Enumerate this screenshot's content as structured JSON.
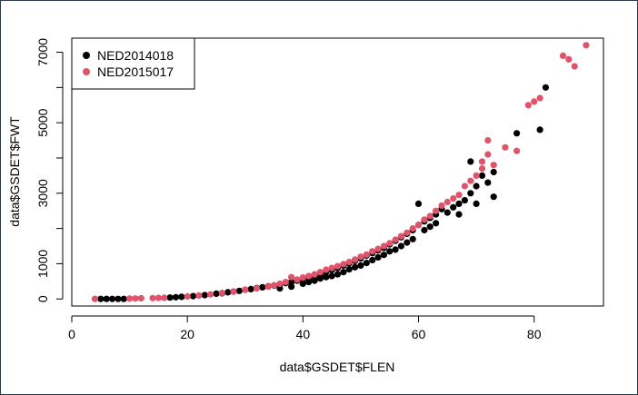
{
  "chart_data": {
    "type": "scatter",
    "xlabel": "data$GSDET$FLEN",
    "ylabel": "data$GSDET$FWT",
    "xlim": [
      0,
      92
    ],
    "ylim": [
      -200,
      7400
    ],
    "x_ticks": [
      0,
      20,
      40,
      60,
      80
    ],
    "x_tick_labels": [
      "0",
      "20",
      "40",
      "60",
      "80"
    ],
    "y_ticks": [
      0,
      1000,
      3000,
      5000,
      7000
    ],
    "y_tick_labels": [
      "0",
      "1000",
      "3000",
      "5000",
      "7000"
    ],
    "y_minor_ticks": [
      2000,
      4000,
      6000
    ],
    "grid": false,
    "legend": "top-left",
    "series": [
      {
        "name": "NED2014018",
        "color": "#000000",
        "points": [
          [
            5,
            0
          ],
          [
            6,
            0
          ],
          [
            7,
            0
          ],
          [
            8,
            0
          ],
          [
            9,
            0
          ],
          [
            17,
            40
          ],
          [
            18,
            50
          ],
          [
            19,
            60
          ],
          [
            21,
            80
          ],
          [
            23,
            110
          ],
          [
            25,
            150
          ],
          [
            26,
            160
          ],
          [
            27,
            190
          ],
          [
            28,
            210
          ],
          [
            29,
            230
          ],
          [
            30,
            260
          ],
          [
            31,
            280
          ],
          [
            32,
            310
          ],
          [
            33,
            330
          ],
          [
            34,
            360
          ],
          [
            35,
            380
          ],
          [
            36,
            410
          ],
          [
            36,
            300
          ],
          [
            37,
            450
          ],
          [
            38,
            480
          ],
          [
            38,
            350
          ],
          [
            39,
            520
          ],
          [
            40,
            560
          ],
          [
            40,
            430
          ],
          [
            41,
            600
          ],
          [
            41,
            480
          ],
          [
            42,
            650
          ],
          [
            42,
            520
          ],
          [
            43,
            700
          ],
          [
            43,
            580
          ],
          [
            44,
            760
          ],
          [
            44,
            620
          ],
          [
            45,
            820
          ],
          [
            45,
            650
          ],
          [
            46,
            880
          ],
          [
            46,
            700
          ],
          [
            47,
            950
          ],
          [
            47,
            760
          ],
          [
            48,
            1010
          ],
          [
            48,
            840
          ],
          [
            49,
            1080
          ],
          [
            49,
            900
          ],
          [
            50,
            1150
          ],
          [
            50,
            950
          ],
          [
            51,
            1230
          ],
          [
            51,
            1020
          ],
          [
            52,
            1300
          ],
          [
            52,
            1100
          ],
          [
            53,
            1380
          ],
          [
            53,
            1180
          ],
          [
            54,
            1450
          ],
          [
            54,
            1250
          ],
          [
            55,
            1550
          ],
          [
            55,
            1350
          ],
          [
            56,
            1650
          ],
          [
            56,
            1400
          ],
          [
            57,
            1750
          ],
          [
            57,
            1500
          ],
          [
            58,
            1850
          ],
          [
            58,
            1600
          ],
          [
            59,
            1950
          ],
          [
            59,
            1700
          ],
          [
            60,
            2700
          ],
          [
            60,
            2100
          ],
          [
            61,
            2200
          ],
          [
            61,
            1950
          ],
          [
            62,
            2300
          ],
          [
            62,
            2050
          ],
          [
            63,
            2400
          ],
          [
            63,
            2150
          ],
          [
            64,
            2550
          ],
          [
            65,
            2450
          ],
          [
            66,
            2600
          ],
          [
            67,
            2700
          ],
          [
            67,
            2400
          ],
          [
            68,
            2800
          ],
          [
            69,
            3900
          ],
          [
            69,
            3000
          ],
          [
            70,
            2700
          ],
          [
            70,
            3200
          ],
          [
            71,
            3500
          ],
          [
            72,
            3300
          ],
          [
            73,
            3600
          ],
          [
            73,
            2900
          ],
          [
            77,
            4700
          ],
          [
            81,
            4800
          ],
          [
            82,
            6000
          ]
        ]
      },
      {
        "name": "NED2015017",
        "color": "#df536b",
        "points": [
          [
            4,
            0
          ],
          [
            10,
            10
          ],
          [
            11,
            15
          ],
          [
            12,
            20
          ],
          [
            14,
            25
          ],
          [
            15,
            30
          ],
          [
            16,
            35
          ],
          [
            20,
            70
          ],
          [
            22,
            100
          ],
          [
            24,
            130
          ],
          [
            26,
            170
          ],
          [
            28,
            210
          ],
          [
            30,
            260
          ],
          [
            32,
            300
          ],
          [
            34,
            350
          ],
          [
            35,
            390
          ],
          [
            36,
            430
          ],
          [
            37,
            480
          ],
          [
            38,
            620
          ],
          [
            39,
            550
          ],
          [
            40,
            610
          ],
          [
            41,
            650
          ],
          [
            42,
            700
          ],
          [
            43,
            760
          ],
          [
            44,
            830
          ],
          [
            45,
            880
          ],
          [
            46,
            930
          ],
          [
            47,
            990
          ],
          [
            48,
            1050
          ],
          [
            49,
            1120
          ],
          [
            50,
            1200
          ],
          [
            51,
            1260
          ],
          [
            52,
            1350
          ],
          [
            53,
            1420
          ],
          [
            54,
            1500
          ],
          [
            55,
            1580
          ],
          [
            56,
            1680
          ],
          [
            57,
            1780
          ],
          [
            58,
            1880
          ],
          [
            59,
            2000
          ],
          [
            60,
            2100
          ],
          [
            61,
            2250
          ],
          [
            62,
            2350
          ],
          [
            63,
            2500
          ],
          [
            64,
            2650
          ],
          [
            65,
            2750
          ],
          [
            66,
            2850
          ],
          [
            67,
            2950
          ],
          [
            68,
            3200
          ],
          [
            69,
            3350
          ],
          [
            70,
            3500
          ],
          [
            71,
            3700
          ],
          [
            71,
            3900
          ],
          [
            72,
            4500
          ],
          [
            72,
            4100
          ],
          [
            73,
            3800
          ],
          [
            75,
            4300
          ],
          [
            77,
            4200
          ],
          [
            79,
            5500
          ],
          [
            80,
            5600
          ],
          [
            81,
            5700
          ],
          [
            85,
            6900
          ],
          [
            86,
            6800
          ],
          [
            87,
            6600
          ],
          [
            89,
            7200
          ]
        ]
      }
    ]
  }
}
